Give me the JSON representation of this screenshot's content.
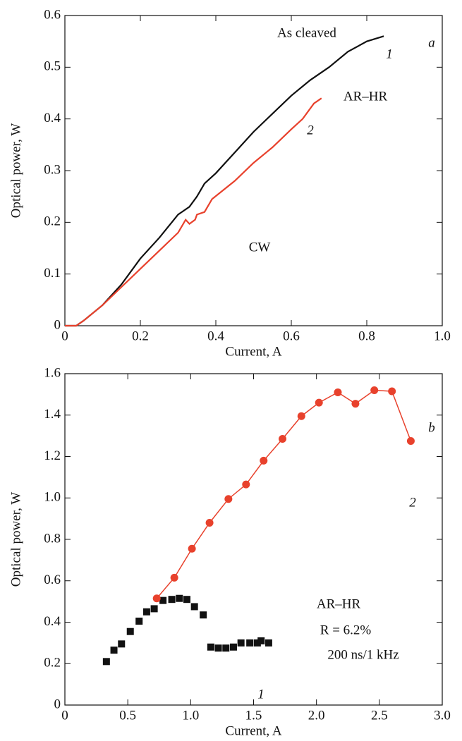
{
  "chart_data": [
    {
      "type": "line",
      "x_label": "Current, A",
      "y_label": "Optical power, W",
      "xlim": [
        0,
        1
      ],
      "xticks": [
        0,
        0.2,
        0.4,
        0.6,
        0.8,
        {
          "value": 1,
          "label": "1.0"
        }
      ],
      "ylim": [
        0,
        0.6
      ],
      "yticks": [
        0,
        0.1,
        0.2,
        0.3,
        0.4,
        0.5,
        0.6
      ],
      "annotations": [
        "As cleaved",
        "1",
        "a",
        "AR–HR",
        "2",
        "CW"
      ],
      "series": [
        {
          "color": "#111111",
          "x": [
            0,
            0.03,
            0.05,
            0.1,
            0.15,
            0.2,
            0.25,
            0.3,
            0.33,
            0.35,
            0.37,
            0.4,
            0.45,
            0.5,
            0.55,
            0.6,
            0.65,
            0.7,
            0.75,
            0.8,
            0.845
          ],
          "values": [
            0,
            0,
            0.01,
            0.04,
            0.08,
            0.13,
            0.17,
            0.215,
            0.23,
            0.25,
            0.275,
            0.295,
            0.335,
            0.375,
            0.41,
            0.445,
            0.475,
            0.5,
            0.53,
            0.55,
            0.56
          ]
        },
        {
          "color": "#e8412c",
          "x": [
            0,
            0.03,
            0.05,
            0.1,
            0.15,
            0.2,
            0.25,
            0.3,
            0.32,
            0.33,
            0.345,
            0.35,
            0.37,
            0.39,
            0.45,
            0.5,
            0.55,
            0.6,
            0.63,
            0.66,
            0.68
          ],
          "values": [
            0,
            0,
            0.01,
            0.04,
            0.075,
            0.11,
            0.145,
            0.18,
            0.205,
            0.197,
            0.205,
            0.215,
            0.22,
            0.245,
            0.28,
            0.315,
            0.345,
            0.38,
            0.4,
            0.43,
            0.44
          ]
        }
      ]
    },
    {
      "type": "scatter",
      "x_label": "Current, A",
      "y_label": "Optical power, W",
      "xlim": [
        0,
        3
      ],
      "xticks": [
        0,
        0.5,
        {
          "value": 1,
          "label": "1.0"
        },
        1.5,
        {
          "value": 2,
          "label": "2.0"
        },
        2.5,
        {
          "value": 3,
          "label": "3.0"
        }
      ],
      "ylim": [
        0,
        1.6
      ],
      "yticks": [
        0,
        0.2,
        0.4,
        0.6,
        0.8,
        {
          "value": 1,
          "label": "1.0"
        },
        1.2,
        1.4,
        1.6
      ],
      "annotations": [
        "b",
        "2",
        "AR–HR",
        "R = 6.2%",
        "200 ns/1 kHz",
        "1"
      ],
      "series": [
        {
          "color": "#111111",
          "marker": "square",
          "x": [
            0.33,
            0.39,
            0.45,
            0.52,
            0.59,
            0.65,
            0.71,
            0.78,
            0.85,
            0.91,
            0.97,
            1.03,
            1.1,
            1.16,
            1.22,
            1.28,
            1.34,
            1.4,
            1.47,
            1.53,
            1.56,
            1.62
          ],
          "values": [
            0.21,
            0.265,
            0.295,
            0.355,
            0.405,
            0.45,
            0.465,
            0.505,
            0.51,
            0.515,
            0.51,
            0.475,
            0.435,
            0.28,
            0.275,
            0.275,
            0.28,
            0.3,
            0.3,
            0.3,
            0.31,
            0.3
          ]
        },
        {
          "color": "#e8412c",
          "marker": "circle",
          "x": [
            0.73,
            0.87,
            1.01,
            1.15,
            1.3,
            1.44,
            1.58,
            1.73,
            1.88,
            2.02,
            2.17,
            2.31,
            2.46,
            2.6,
            2.75
          ],
          "values": [
            0.515,
            0.615,
            0.755,
            0.88,
            0.995,
            1.065,
            1.18,
            1.285,
            1.395,
            1.46,
            1.51,
            1.455,
            1.52,
            1.515,
            1.275
          ]
        }
      ]
    }
  ]
}
